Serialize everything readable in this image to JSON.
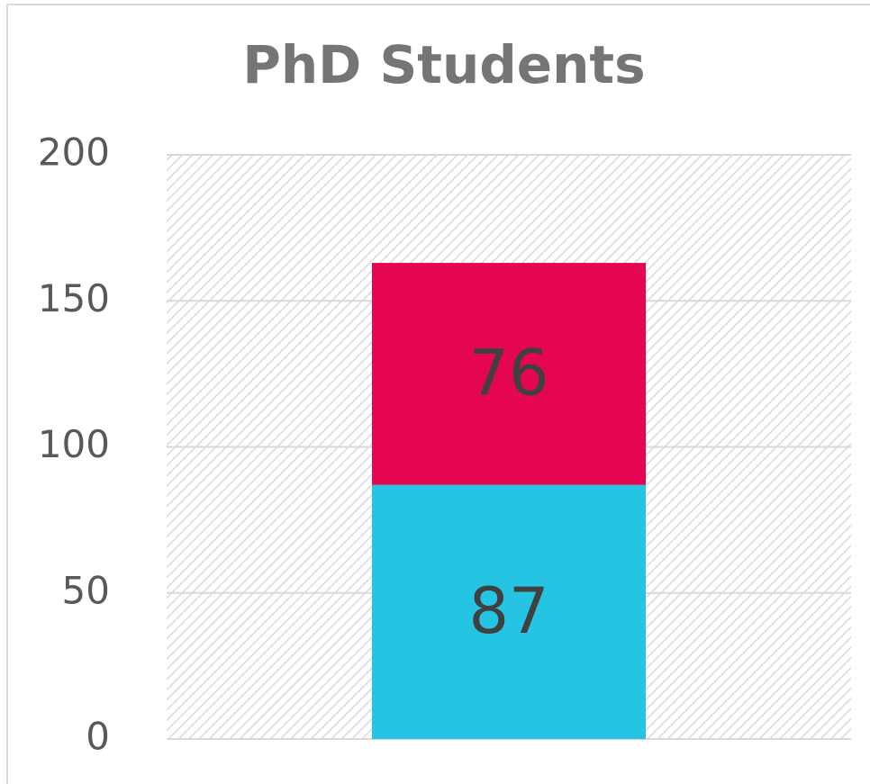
{
  "chart_data": {
    "type": "stacked_bar",
    "title": "PhD Students",
    "categories": [
      null
    ],
    "series": [
      {
        "color": "#25c4e3",
        "values": [
          87
        ]
      },
      {
        "color": "#e50653",
        "values": [
          76
        ]
      }
    ],
    "ylim": [
      0,
      200
    ],
    "yticks": [
      0,
      50,
      100,
      150,
      200
    ],
    "grid": true
  }
}
